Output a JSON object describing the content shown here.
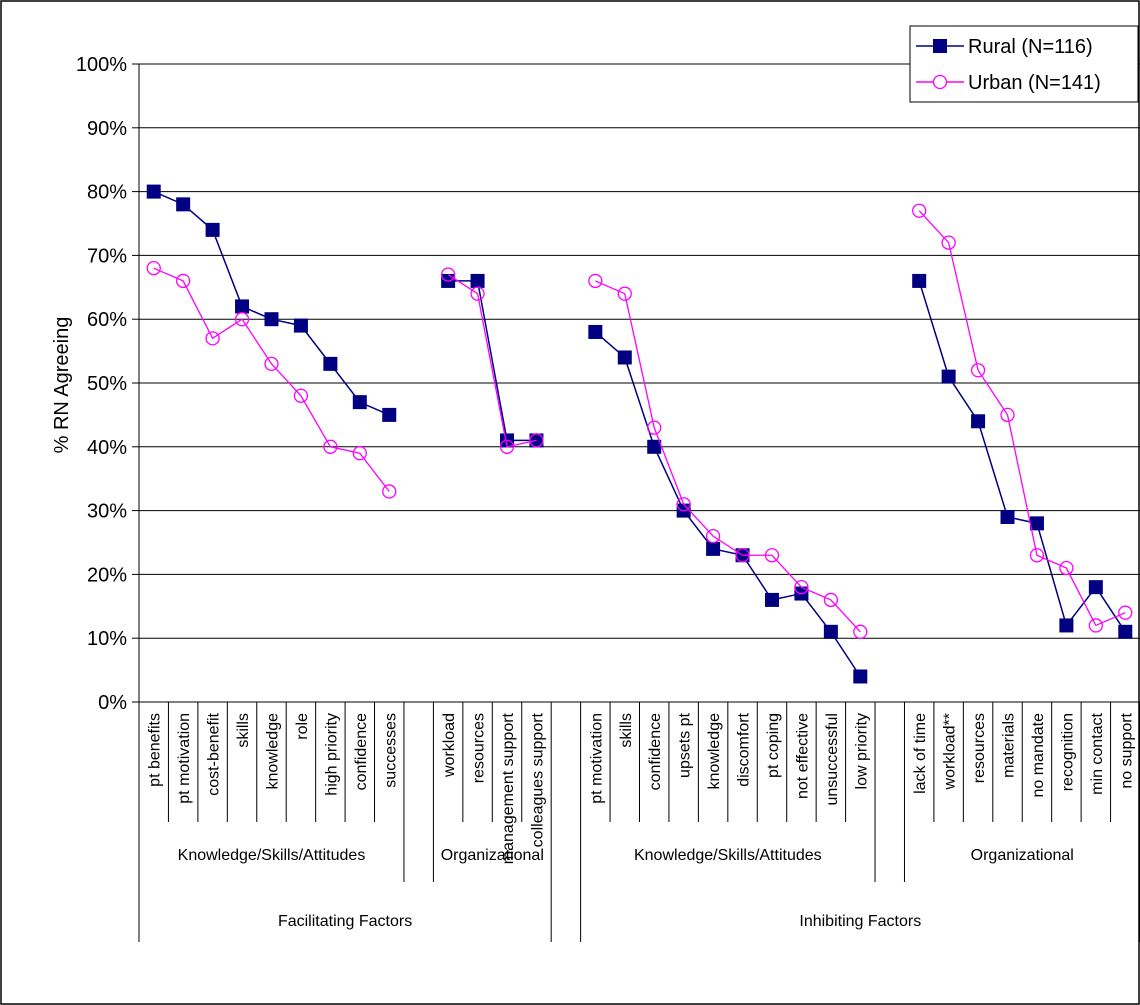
{
  "chart_data": {
    "type": "line",
    "ylabel": "% RN Agreeing",
    "ylim": [
      0,
      100
    ],
    "y_ticks": [
      "0%",
      "10%",
      "20%",
      "30%",
      "40%",
      "50%",
      "60%",
      "70%",
      "80%",
      "90%",
      "100%"
    ],
    "grid": true,
    "legend_position": "top-right",
    "categories": [
      "pt benefits",
      "pt motivation",
      "cost-benefit",
      "skills",
      "knowledge",
      "role",
      "high priority",
      "confidence",
      "successes",
      "",
      "workload",
      "resources",
      "management support",
      "colleagues support",
      "",
      "pt motivation",
      "skills",
      "confidence",
      "upsets pt",
      "knowledge",
      "discomfort",
      "pt coping",
      "not effective",
      "unsuccessful",
      "low priority",
      "",
      "lack of time",
      "workload**",
      "resources",
      "materials",
      "no mandate",
      "recognition",
      "min contact",
      "no support"
    ],
    "subgroups": [
      {
        "label": "Knowledge/Skills/Attitudes",
        "start": 0,
        "end": 9
      },
      {
        "label": "Organizational",
        "start": 10,
        "end": 14
      },
      {
        "label": "Knowledge/Skills/Attitudes",
        "start": 15,
        "end": 25
      },
      {
        "label": "Organizational",
        "start": 26,
        "end": 34
      }
    ],
    "groups": [
      {
        "label": "Facilitating Factors",
        "start": 0,
        "end": 14
      },
      {
        "label": "Inhibiting Factors",
        "start": 15,
        "end": 34
      }
    ],
    "series": [
      {
        "name": "Rural (N=116)",
        "color": "#000080",
        "marker": "square",
        "values": [
          80,
          78,
          74,
          62,
          60,
          59,
          53,
          47,
          45,
          null,
          66,
          66,
          41,
          41,
          null,
          58,
          54,
          40,
          30,
          24,
          23,
          16,
          17,
          11,
          4,
          null,
          66,
          51,
          44,
          29,
          28,
          12,
          18,
          11
        ]
      },
      {
        "name": "Urban (N=141)",
        "color": "#FF00FF",
        "marker": "circle",
        "values": [
          68,
          66,
          57,
          60,
          53,
          48,
          40,
          39,
          33,
          null,
          67,
          64,
          40,
          41,
          null,
          66,
          64,
          43,
          31,
          26,
          23,
          23,
          18,
          16,
          11,
          null,
          77,
          72,
          52,
          45,
          23,
          21,
          12,
          14
        ]
      }
    ]
  }
}
